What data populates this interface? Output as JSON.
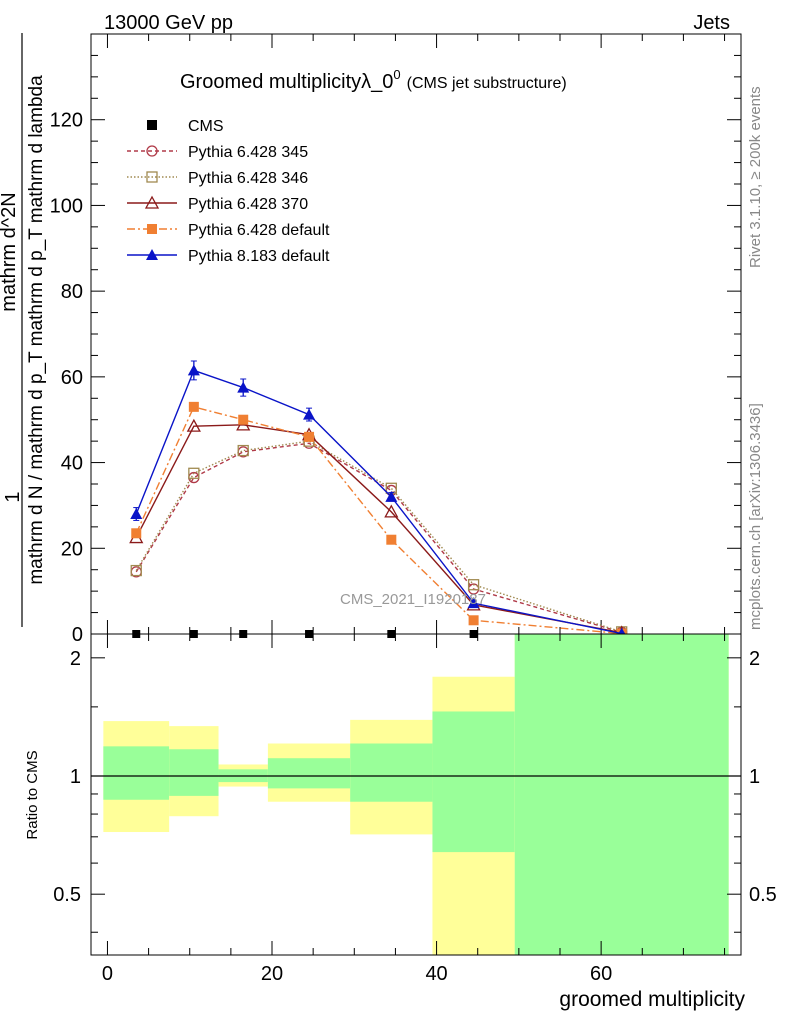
{
  "header": {
    "left": "13000 GeV pp",
    "right": "Jets"
  },
  "side_text": {
    "top": "Rivet 3.1.10, ≥ 200k events",
    "bottom": "mcplots.cern.ch [arXiv:1306.3436]"
  },
  "watermark": "CMS_2021_I1920187",
  "colors": {
    "cms": "#000000",
    "p345": "#b03a48",
    "p346": "#a08a50",
    "p370": "#8b1a1a",
    "pdefault": "#f07f32",
    "p8": "#0a14c8",
    "band_yellow": "#ffff99",
    "band_green": "#99ff99"
  },
  "chart_data": [
    {
      "type": "line",
      "title_main": "Groomed multiplicityλ_0",
      "title_sup": "0",
      "title_sub": "(CMS jet substructure)",
      "ylabel_num": "1",
      "ylabel_den_line1": "mathrm d N / mathrm d p",
      "ylabel_den_line2": "mathrm d p",
      "ylabel_den_line3": "mathrm d lambda",
      "ylabel_den_full": "mathrm d N / mathrm d p_T mathrm d p_T mathrm d lambda",
      "ylabel_top": "mathrm d^2N",
      "ylim": [
        0,
        140
      ],
      "yticks": [
        0,
        20,
        40,
        60,
        80,
        100,
        120
      ],
      "xlim": [
        -2,
        77
      ],
      "x": [
        3.5,
        10.5,
        16.5,
        24.5,
        34.5,
        44.5,
        62.5
      ],
      "series": [
        {
          "name": "CMS",
          "key": "cms",
          "marker": "square",
          "values": [
            0,
            0,
            0,
            0,
            0,
            0,
            0
          ]
        },
        {
          "name": "Pythia 6.428 345",
          "key": "p345",
          "marker": "circle-open",
          "dash": "4,3",
          "values": [
            14.5,
            36.5,
            42.5,
            44.5,
            33.5,
            10.5,
            0.4
          ]
        },
        {
          "name": "Pythia 6.428 346",
          "key": "p346",
          "marker": "square-open",
          "dash": "1.5,2",
          "values": [
            14.8,
            37.5,
            42.8,
            45.0,
            34.0,
            11.5,
            0.5
          ]
        },
        {
          "name": "Pythia 6.428 370",
          "key": "p370",
          "marker": "triangle-open",
          "dash": "",
          "values": [
            22.5,
            48.5,
            48.8,
            46.5,
            28.5,
            6.8,
            0.3
          ]
        },
        {
          "name": "Pythia 6.428 default",
          "key": "pdefault",
          "marker": "square",
          "dash": "8,3,2,3",
          "values": [
            23.5,
            53.0,
            50.0,
            46.0,
            22.0,
            3.2,
            0.1
          ]
        },
        {
          "name": "Pythia 8.183 default",
          "key": "p8",
          "marker": "triangle",
          "dash": "",
          "values": [
            28.0,
            61.5,
            57.5,
            51.2,
            32.0,
            7.2,
            0.1
          ],
          "errors": [
            1.5,
            2.2,
            2.0,
            1.5,
            1.0,
            0.5,
            0.1
          ]
        }
      ]
    },
    {
      "type": "area",
      "ylabel": "Ratio to CMS",
      "xlabel": "groomed multiplicity",
      "scale": "log",
      "ylim": [
        0.35,
        2.3
      ],
      "yticks": [
        0.5,
        1,
        2
      ],
      "ytick_labels": [
        "0.5",
        "1",
        "2"
      ],
      "xticks": [
        0,
        20,
        40,
        60
      ],
      "xlim": [
        -2,
        77
      ],
      "bins": [
        {
          "lo": -0.5,
          "hi": 7.5,
          "yellow": [
            0.72,
            1.38
          ],
          "green": [
            0.87,
            1.19
          ]
        },
        {
          "lo": 7.5,
          "hi": 13.5,
          "yellow": [
            0.79,
            1.34
          ],
          "green": [
            0.89,
            1.17
          ]
        },
        {
          "lo": 13.5,
          "hi": 19.5,
          "yellow": [
            0.94,
            1.07
          ],
          "green": [
            0.965,
            1.04
          ]
        },
        {
          "lo": 19.5,
          "hi": 29.5,
          "yellow": [
            0.86,
            1.21
          ],
          "green": [
            0.93,
            1.11
          ]
        },
        {
          "lo": 29.5,
          "hi": 39.5,
          "yellow": [
            0.71,
            1.39
          ],
          "green": [
            0.86,
            1.21
          ]
        },
        {
          "lo": 39.5,
          "hi": 49.5,
          "yellow": [
            0.35,
            1.79
          ],
          "green": [
            0.64,
            1.46
          ]
        },
        {
          "lo": 49.5,
          "hi": 75.5,
          "yellow": [
            0.35,
            2.3
          ],
          "green": [
            0.35,
            2.3
          ]
        }
      ]
    }
  ]
}
